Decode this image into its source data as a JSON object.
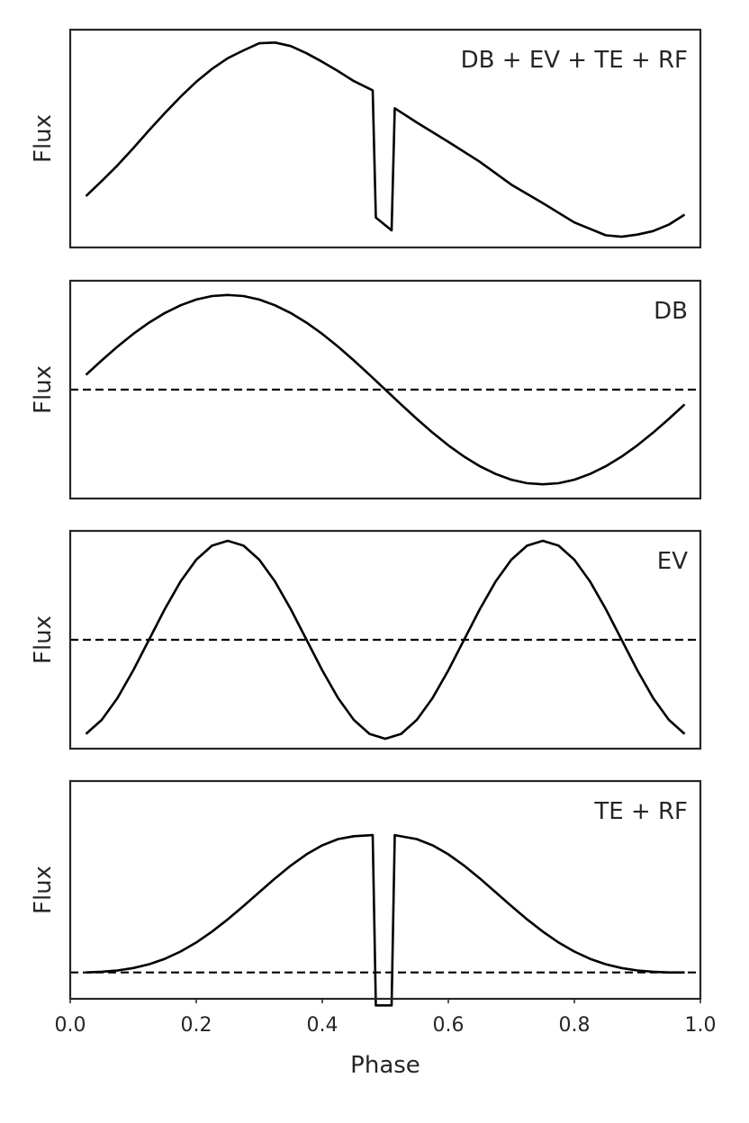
{
  "chart_data": [
    {
      "type": "line",
      "label": "DB + EV + TE + RF",
      "ylabel": "Flux",
      "xlim": [
        0.0,
        1.0
      ],
      "ylim": [
        -1.7,
        1.35
      ],
      "dashed_baseline": false,
      "series": [
        {
          "x": [
            0.025,
            0.05,
            0.075,
            0.1,
            0.125,
            0.15,
            0.175,
            0.2,
            0.225,
            0.25,
            0.275,
            0.3,
            0.325,
            0.35,
            0.375,
            0.4,
            0.425,
            0.45,
            0.48,
            0.485,
            0.51,
            0.515,
            0.55,
            0.6,
            0.65,
            0.7,
            0.75,
            0.8,
            0.85,
            0.875,
            0.9,
            0.925,
            0.95,
            0.975
          ],
          "y": [
            -0.98,
            -0.77,
            -0.55,
            -0.31,
            -0.06,
            0.18,
            0.41,
            0.62,
            0.8,
            0.95,
            1.06,
            1.16,
            1.17,
            1.12,
            1.02,
            0.9,
            0.77,
            0.63,
            0.5,
            -1.28,
            -1.46,
            0.25,
            0.05,
            -0.22,
            -0.5,
            -0.82,
            -1.08,
            -1.35,
            -1.53,
            -1.55,
            -1.52,
            -1.47,
            -1.38,
            -1.24
          ]
        }
      ]
    },
    {
      "type": "line",
      "label": "DB",
      "ylabel": "Flux",
      "xlim": [
        0.0,
        1.0
      ],
      "ylim": [
        -1.15,
        1.15
      ],
      "dashed_baseline": true,
      "series": [
        {
          "x": [
            0.025,
            0.05,
            0.075,
            0.1,
            0.125,
            0.15,
            0.175,
            0.2,
            0.225,
            0.25,
            0.275,
            0.3,
            0.325,
            0.35,
            0.375,
            0.4,
            0.425,
            0.45,
            0.475,
            0.5,
            0.525,
            0.55,
            0.575,
            0.6,
            0.625,
            0.65,
            0.675,
            0.7,
            0.725,
            0.75,
            0.775,
            0.8,
            0.825,
            0.85,
            0.875,
            0.9,
            0.925,
            0.95,
            0.975
          ],
          "y": [
            0.156,
            0.309,
            0.454,
            0.588,
            0.707,
            0.809,
            0.891,
            0.951,
            0.988,
            1.0,
            0.988,
            0.951,
            0.891,
            0.809,
            0.707,
            0.588,
            0.454,
            0.309,
            0.156,
            0.0,
            -0.156,
            -0.309,
            -0.454,
            -0.588,
            -0.707,
            -0.809,
            -0.891,
            -0.951,
            -0.988,
            -1.0,
            -0.988,
            -0.951,
            -0.891,
            -0.809,
            -0.707,
            -0.588,
            -0.454,
            -0.309,
            -0.156
          ]
        }
      ]
    },
    {
      "type": "line",
      "label": "EV",
      "ylabel": "Flux",
      "xlim": [
        0.0,
        1.0
      ],
      "ylim": [
        -1.1,
        1.1
      ],
      "dashed_baseline": true,
      "series": [
        {
          "x": [
            0.025,
            0.05,
            0.075,
            0.1,
            0.125,
            0.15,
            0.175,
            0.2,
            0.225,
            0.25,
            0.275,
            0.3,
            0.325,
            0.35,
            0.375,
            0.4,
            0.425,
            0.45,
            0.475,
            0.5,
            0.525,
            0.55,
            0.575,
            0.6,
            0.625,
            0.65,
            0.675,
            0.7,
            0.725,
            0.75,
            0.775,
            0.8,
            0.825,
            0.85,
            0.875,
            0.9,
            0.925,
            0.95,
            0.975
          ],
          "y": [
            -0.951,
            -0.809,
            -0.588,
            -0.309,
            0.0,
            0.309,
            0.588,
            0.809,
            0.951,
            1.0,
            0.951,
            0.809,
            0.588,
            0.309,
            0.0,
            -0.309,
            -0.588,
            -0.809,
            -0.951,
            -1.0,
            -0.951,
            -0.809,
            -0.588,
            -0.309,
            0.0,
            0.309,
            0.588,
            0.809,
            0.951,
            1.0,
            0.951,
            0.809,
            0.588,
            0.309,
            0.0,
            -0.309,
            -0.588,
            -0.809,
            -0.951
          ]
        }
      ]
    },
    {
      "type": "line",
      "label": "TE + RF",
      "ylabel": "Flux",
      "xlim": [
        0.0,
        1.0
      ],
      "ylim": [
        -0.2,
        1.45
      ],
      "dashed_baseline": true,
      "series": [
        {
          "x": [
            0.025,
            0.05,
            0.075,
            0.1,
            0.125,
            0.15,
            0.175,
            0.2,
            0.225,
            0.25,
            0.275,
            0.3,
            0.325,
            0.35,
            0.375,
            0.4,
            0.425,
            0.45,
            0.48,
            0.485,
            0.51,
            0.515,
            0.55,
            0.575,
            0.6,
            0.625,
            0.65,
            0.675,
            0.7,
            0.725,
            0.75,
            0.775,
            0.8,
            0.825,
            0.85,
            0.875,
            0.9,
            0.925,
            0.95,
            0.975
          ],
          "y": [
            0.0,
            0.005,
            0.015,
            0.033,
            0.062,
            0.103,
            0.158,
            0.227,
            0.309,
            0.402,
            0.503,
            0.608,
            0.712,
            0.81,
            0.895,
            0.963,
            1.01,
            1.032,
            1.04,
            -0.25,
            -0.25,
            1.04,
            1.01,
            0.963,
            0.895,
            0.81,
            0.712,
            0.608,
            0.503,
            0.402,
            0.309,
            0.227,
            0.158,
            0.103,
            0.062,
            0.033,
            0.015,
            0.005,
            0.0,
            0.0
          ]
        }
      ]
    }
  ],
  "x_axis": {
    "label": "Phase",
    "ticks": [
      "0.0",
      "0.2",
      "0.4",
      "0.6",
      "0.8",
      "1.0"
    ]
  }
}
